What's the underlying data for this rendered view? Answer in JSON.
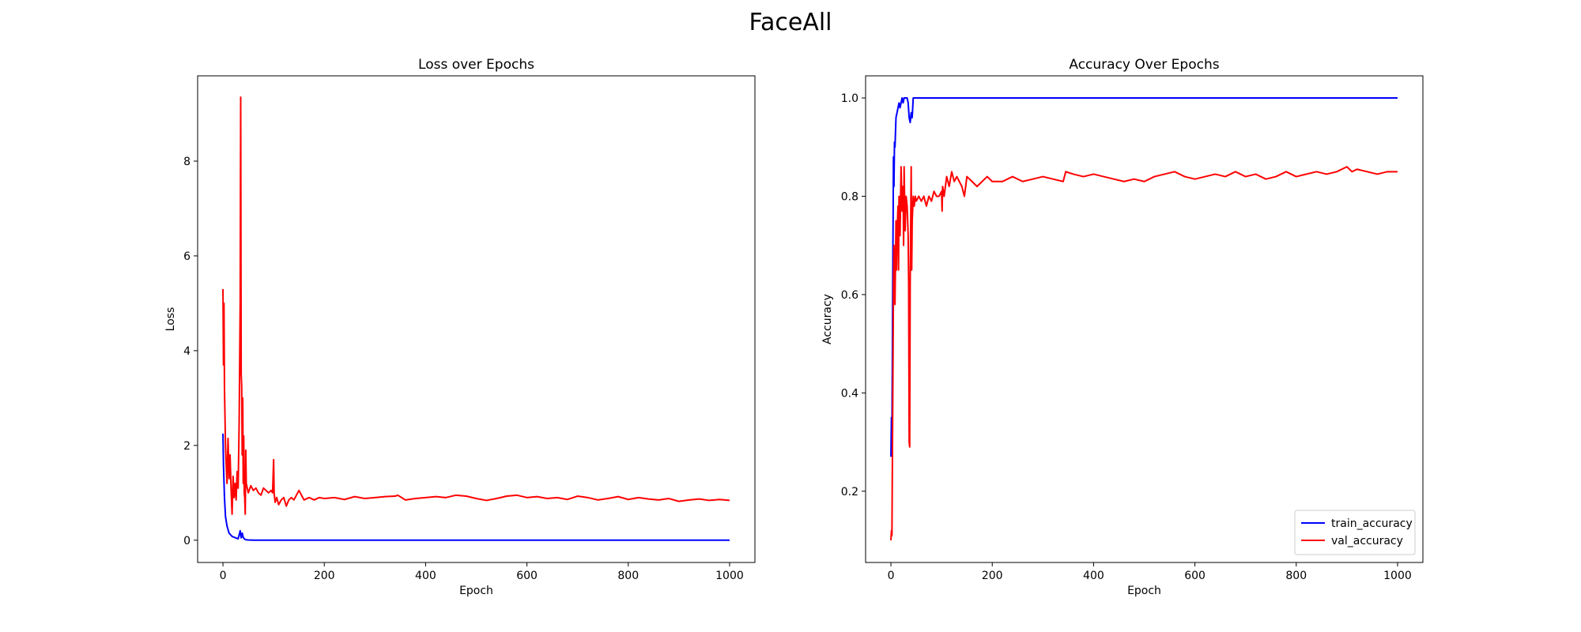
{
  "figure": {
    "suptitle": "FaceAll"
  },
  "chart_data": [
    {
      "type": "line",
      "title": "Loss over Epochs",
      "xlabel": "Epoch",
      "ylabel": "Loss",
      "xlim": [
        -50,
        1050
      ],
      "ylim": [
        -0.47,
        9.8
      ],
      "xticks": [
        0,
        200,
        400,
        600,
        800,
        1000
      ],
      "yticks": [
        0,
        2,
        4,
        6,
        8
      ],
      "grid": false,
      "legend": null,
      "series": [
        {
          "color": "#0000ff",
          "x": [
            0,
            1,
            3,
            5,
            8,
            12,
            18,
            25,
            30,
            34,
            36,
            38,
            40,
            42,
            45,
            50,
            60,
            80,
            100,
            150,
            200,
            300,
            400,
            500,
            600,
            700,
            800,
            900,
            1000
          ],
          "y": [
            2.25,
            1.6,
            0.9,
            0.5,
            0.3,
            0.15,
            0.08,
            0.05,
            0.03,
            0.2,
            0.05,
            0.15,
            0.06,
            0.03,
            0.01,
            0.005,
            0.002,
            0.002,
            0.001,
            0.001,
            0.001,
            0.001,
            0.001,
            0.001,
            0.001,
            0.001,
            0.001,
            0.001,
            0.001
          ]
        },
        {
          "color": "#ff0000",
          "x": [
            0,
            1,
            2,
            3,
            4,
            5,
            6,
            8,
            10,
            12,
            14,
            16,
            18,
            20,
            22,
            24,
            26,
            28,
            30,
            32,
            34,
            35,
            36,
            37,
            38,
            39,
            40,
            41,
            42,
            43,
            44,
            45,
            46,
            48,
            50,
            55,
            60,
            65,
            70,
            75,
            80,
            85,
            90,
            95,
            98,
            100,
            101,
            103,
            106,
            110,
            115,
            120,
            125,
            130,
            135,
            140,
            145,
            150,
            160,
            170,
            180,
            190,
            200,
            220,
            240,
            260,
            280,
            300,
            320,
            340,
            345,
            360,
            380,
            400,
            420,
            440,
            460,
            480,
            500,
            520,
            540,
            560,
            580,
            600,
            620,
            640,
            660,
            680,
            700,
            720,
            740,
            760,
            780,
            800,
            820,
            840,
            860,
            880,
            900,
            920,
            940,
            960,
            980,
            1000
          ],
          "y": [
            5.3,
            3.7,
            5.0,
            3.2,
            2.6,
            2.0,
            1.7,
            1.2,
            2.15,
            1.3,
            1.8,
            1.1,
            0.55,
            1.35,
            0.9,
            1.2,
            0.85,
            1.45,
            1.1,
            2.5,
            5.0,
            9.35,
            3.5,
            3.25,
            1.8,
            3.0,
            1.2,
            2.2,
            1.0,
            0.9,
            0.55,
            1.9,
            1.2,
            1.1,
            1.0,
            1.15,
            1.05,
            1.1,
            1.0,
            0.95,
            1.1,
            1.05,
            1.0,
            1.05,
            1.0,
            1.7,
            1.0,
            0.8,
            0.9,
            0.75,
            0.85,
            0.9,
            0.72,
            0.85,
            0.9,
            0.85,
            0.95,
            1.05,
            0.85,
            0.9,
            0.85,
            0.9,
            0.88,
            0.9,
            0.86,
            0.92,
            0.88,
            0.9,
            0.92,
            0.93,
            0.95,
            0.85,
            0.88,
            0.9,
            0.92,
            0.9,
            0.95,
            0.93,
            0.88,
            0.84,
            0.88,
            0.93,
            0.95,
            0.9,
            0.92,
            0.88,
            0.9,
            0.86,
            0.93,
            0.9,
            0.85,
            0.88,
            0.92,
            0.86,
            0.9,
            0.87,
            0.85,
            0.88,
            0.82,
            0.85,
            0.87,
            0.84,
            0.86,
            0.84
          ]
        }
      ]
    },
    {
      "type": "line",
      "title": "Accuracy Over Epochs",
      "xlabel": "Epoch",
      "ylabel": "Accuracy",
      "xlim": [
        -50,
        1050
      ],
      "ylim": [
        0.055,
        1.045
      ],
      "xticks": [
        0,
        200,
        400,
        600,
        800,
        1000
      ],
      "yticks": [
        0.2,
        0.4,
        0.6,
        0.8,
        1.0
      ],
      "grid": false,
      "legend": "lower-right",
      "series": [
        {
          "name": "train_accuracy",
          "color": "#0000ff",
          "x": [
            0,
            1,
            2,
            3,
            4,
            5,
            6,
            7,
            8,
            10,
            12,
            14,
            16,
            18,
            20,
            22,
            24,
            26,
            28,
            30,
            32,
            34,
            36,
            38,
            40,
            42,
            44,
            46,
            50,
            60,
            80,
            100,
            200,
            400,
            600,
            800,
            1000
          ],
          "y": [
            0.27,
            0.35,
            0.32,
            0.5,
            0.7,
            0.88,
            0.82,
            0.91,
            0.9,
            0.96,
            0.97,
            0.98,
            0.99,
            0.98,
            0.99,
            1.0,
            0.99,
            1.0,
            1.0,
            1.0,
            1.0,
            0.99,
            0.96,
            0.95,
            0.97,
            0.96,
            1.0,
            1.0,
            1.0,
            1.0,
            1.0,
            1.0,
            1.0,
            1.0,
            1.0,
            1.0,
            1.0
          ]
        },
        {
          "name": "val_accuracy",
          "color": "#ff0000",
          "x": [
            0,
            1,
            2,
            3,
            4,
            5,
            6,
            8,
            10,
            11,
            12,
            14,
            15,
            16,
            18,
            20,
            22,
            24,
            25,
            26,
            28,
            30,
            32,
            34,
            35,
            36,
            37,
            38,
            40,
            41,
            42,
            44,
            46,
            48,
            50,
            55,
            60,
            65,
            70,
            75,
            80,
            85,
            90,
            95,
            100,
            101,
            102,
            105,
            110,
            115,
            120,
            125,
            130,
            140,
            145,
            150,
            160,
            170,
            180,
            190,
            200,
            220,
            240,
            260,
            280,
            300,
            320,
            340,
            345,
            360,
            380,
            400,
            420,
            440,
            460,
            480,
            500,
            520,
            540,
            560,
            580,
            600,
            620,
            640,
            660,
            680,
            700,
            720,
            740,
            760,
            780,
            800,
            820,
            840,
            860,
            880,
            900,
            910,
            920,
            940,
            960,
            980,
            1000
          ],
          "y": [
            0.1,
            0.12,
            0.11,
            0.28,
            0.45,
            0.62,
            0.7,
            0.58,
            0.75,
            0.65,
            0.72,
            0.78,
            0.65,
            0.8,
            0.72,
            0.86,
            0.77,
            0.82,
            0.7,
            0.86,
            0.73,
            0.8,
            0.78,
            0.72,
            0.62,
            0.3,
            0.29,
            0.62,
            0.86,
            0.65,
            0.75,
            0.8,
            0.78,
            0.8,
            0.79,
            0.8,
            0.79,
            0.8,
            0.78,
            0.8,
            0.79,
            0.81,
            0.8,
            0.8,
            0.81,
            0.77,
            0.82,
            0.8,
            0.84,
            0.82,
            0.85,
            0.83,
            0.84,
            0.82,
            0.8,
            0.84,
            0.83,
            0.82,
            0.83,
            0.84,
            0.83,
            0.83,
            0.84,
            0.83,
            0.835,
            0.84,
            0.835,
            0.83,
            0.85,
            0.845,
            0.84,
            0.845,
            0.84,
            0.835,
            0.83,
            0.835,
            0.83,
            0.84,
            0.845,
            0.85,
            0.84,
            0.835,
            0.84,
            0.845,
            0.84,
            0.85,
            0.84,
            0.845,
            0.835,
            0.84,
            0.85,
            0.84,
            0.845,
            0.85,
            0.845,
            0.85,
            0.86,
            0.85,
            0.855,
            0.85,
            0.845,
            0.85,
            0.85
          ]
        }
      ]
    }
  ]
}
